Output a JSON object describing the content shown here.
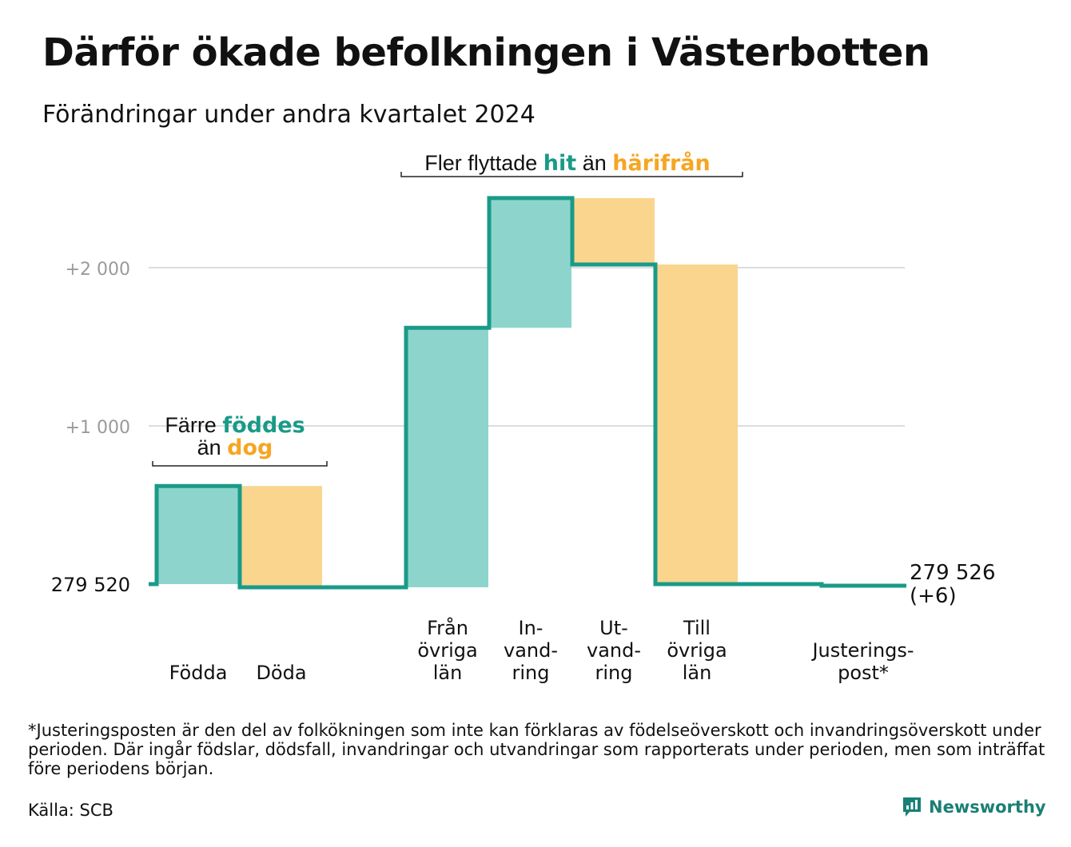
{
  "title": "Därför ökade befolkningen i Västerbotten",
  "subtitle": "Förändringar under andra kvartalet 2024",
  "footnote": "*Justeringsposten är den del av folkökningen som inte kan förklaras av födelseöverskott och invandringsöverskott under perioden. Där ingår födslar, dödsfall, invandringar och utvandringar som rapporterats under perioden, men som inträffat före periodens början.",
  "source": "Källa: SCB",
  "logo_text": "Newsworthy",
  "colors": {
    "teal": "#1a9a88",
    "teal_fill": "#8dd5cc",
    "orange_fill": "#f9d58e",
    "orange_text": "#f5a623",
    "grid": "#dddddd"
  },
  "annotations": {
    "births": {
      "line1_pre": "Färre ",
      "line1_em": "föddes",
      "line2_pre": "än ",
      "line2_em": "dog"
    },
    "migration": {
      "pre": "Fler flyttade ",
      "em1": "hit",
      "mid": " än ",
      "em2": "härifrån"
    }
  },
  "chart_data": {
    "type": "waterfall",
    "title": "Därför ökade befolkningen i Västerbotten",
    "subtitle": "Förändringar under andra kvartalet 2024",
    "base_value": 279520,
    "base_label": "279 520",
    "end_label_line1": "279 526",
    "end_label_line2": "(+6)",
    "yticks": [
      {
        "value": 1000,
        "label": "+1 000"
      },
      {
        "value": 2000,
        "label": "+2 000"
      }
    ],
    "steps": [
      {
        "label": [
          "Födda"
        ],
        "delta": 620,
        "kind": "gain"
      },
      {
        "label": [
          "Döda"
        ],
        "delta": -640,
        "kind": "loss"
      },
      {
        "label": [],
        "delta": 0,
        "kind": "gap"
      },
      {
        "label": [
          "Från",
          "övriga",
          "län"
        ],
        "delta": 1640,
        "kind": "gain"
      },
      {
        "label": [
          "In-",
          "vand-",
          "ring"
        ],
        "delta": 820,
        "kind": "gain"
      },
      {
        "label": [
          "Ut-",
          "vand-",
          "ring"
        ],
        "delta": -420,
        "kind": "loss"
      },
      {
        "label": [
          "Till",
          "övriga",
          "län"
        ],
        "delta": -2020,
        "kind": "loss"
      },
      {
        "label": [],
        "delta": 0,
        "kind": "gap"
      },
      {
        "label": [
          "Justerings-",
          "post*"
        ],
        "delta": -10,
        "kind": "adjust"
      }
    ]
  }
}
